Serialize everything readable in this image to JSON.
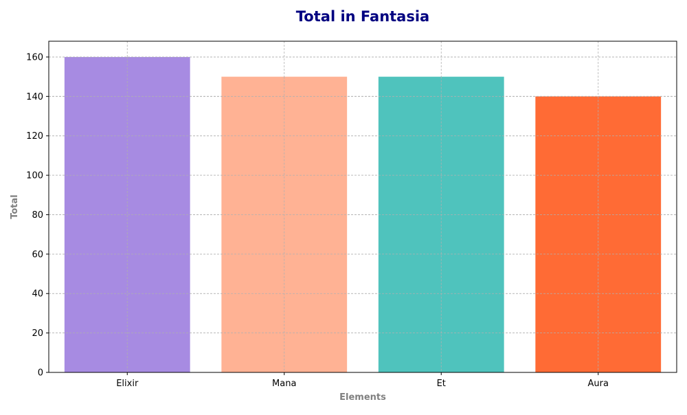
{
  "chart_data": {
    "type": "bar",
    "title": "Total in Fantasia",
    "xlabel": "Elements",
    "ylabel": "Total",
    "categories": [
      "Elixir",
      "Mana",
      "Et",
      "Aura"
    ],
    "values": [
      160,
      150,
      150,
      140
    ],
    "colors": [
      "#a78be2",
      "#ffb294",
      "#4fc3bd",
      "#ff6b35"
    ],
    "ylim": [
      0,
      168
    ],
    "yticks": [
      0,
      20,
      40,
      60,
      80,
      100,
      120,
      140,
      160
    ],
    "grid": true,
    "title_color": "#000080",
    "axis_label_color": "#808080"
  }
}
